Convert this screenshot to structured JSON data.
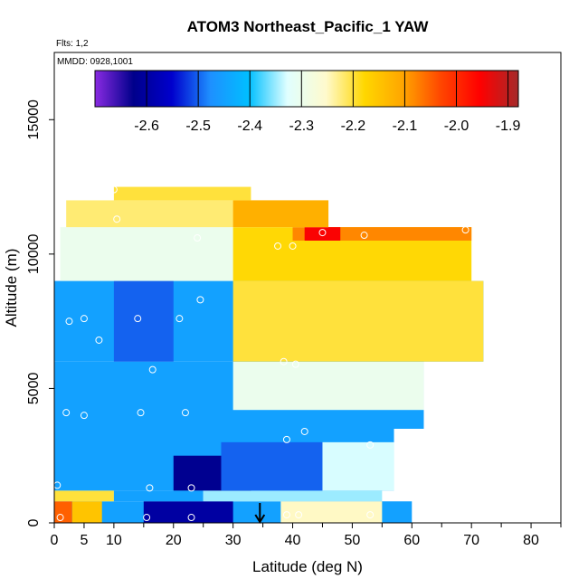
{
  "chart_data": {
    "type": "heatmap",
    "title": "ATOM3 Northeast_Pacific_1 YAW",
    "flights_text": "Flts: 1,2",
    "dates_text": "MMDD: 0928,1001",
    "xlabel": "Latitude (deg N)",
    "ylabel": "Altitude (m)",
    "xlim": [
      0,
      85
    ],
    "ylim": [
      0,
      17500
    ],
    "x_ticks": [
      0,
      5,
      10,
      20,
      30,
      40,
      50,
      60,
      70,
      80
    ],
    "x_minor_ticks": [
      15,
      25,
      35,
      45,
      55,
      65,
      75,
      85
    ],
    "y_ticks": [
      0,
      5000,
      10000,
      15000
    ],
    "colorbar": {
      "range": [
        -2.7,
        -1.88
      ],
      "ticks": [
        -2.6,
        -2.5,
        -2.4,
        -2.3,
        -2.2,
        -2.1,
        -2.0,
        -1.9
      ],
      "tick_labels": [
        "-2.6",
        "-2.5",
        "-2.4",
        "-2.3",
        "-2.2",
        "-2.1",
        "-2.0",
        "-1.9"
      ],
      "colors": [
        "#8a2be2",
        "#00008b",
        "#0000cd",
        "#1e90ff",
        "#00bfff",
        "#e0ffff",
        "#fffacd",
        "#ffd700",
        "#ffa500",
        "#ff4500",
        "#ff0000",
        "#a52a2a"
      ]
    },
    "arrow_latitude": 34.5,
    "regions": [
      {
        "x0": 0,
        "x1": 60,
        "y0": 0,
        "y1": 800,
        "value": -2.45
      },
      {
        "x0": 0,
        "x1": 3,
        "y0": 0,
        "y1": 800,
        "value": -2.05
      },
      {
        "x0": 3,
        "x1": 8,
        "y0": 0,
        "y1": 800,
        "value": -2.15
      },
      {
        "x0": 15,
        "x1": 30,
        "y0": 0,
        "y1": 800,
        "value": -2.6
      },
      {
        "x0": 38,
        "x1": 55,
        "y0": 0,
        "y1": 800,
        "value": -2.25
      },
      {
        "x0": 0,
        "x1": 10,
        "y0": 800,
        "y1": 1200,
        "value": -2.2
      },
      {
        "x0": 10,
        "x1": 25,
        "y0": 800,
        "y1": 1200,
        "value": -2.45
      },
      {
        "x0": 25,
        "x1": 55,
        "y0": 800,
        "y1": 1200,
        "value": -2.35
      },
      {
        "x0": 0,
        "x1": 57,
        "y0": 1200,
        "y1": 3500,
        "value": -2.45
      },
      {
        "x0": 20,
        "x1": 33,
        "y0": 1200,
        "y1": 2500,
        "value": -2.62
      },
      {
        "x0": 28,
        "x1": 45,
        "y0": 1200,
        "y1": 3000,
        "value": -2.5
      },
      {
        "x0": 45,
        "x1": 57,
        "y0": 1200,
        "y1": 3000,
        "value": -2.33
      },
      {
        "x0": 0,
        "x1": 62,
        "y0": 3500,
        "y1": 6000,
        "value": -2.45
      },
      {
        "x0": 30,
        "x1": 62,
        "y0": 4200,
        "y1": 6000,
        "value": -2.3
      },
      {
        "x0": 0,
        "x1": 72,
        "y0": 6000,
        "y1": 9000,
        "value": -2.45
      },
      {
        "x0": 10,
        "x1": 20,
        "y0": 6000,
        "y1": 9000,
        "value": -2.5
      },
      {
        "x0": 30,
        "x1": 72,
        "y0": 6000,
        "y1": 9000,
        "value": -2.2
      },
      {
        "x0": 1,
        "x1": 70,
        "y0": 9000,
        "y1": 11000,
        "value": -2.3
      },
      {
        "x0": 30,
        "x1": 70,
        "y0": 9000,
        "y1": 11000,
        "value": -2.18
      },
      {
        "x0": 40,
        "x1": 70,
        "y0": 10500,
        "y1": 11000,
        "value": -2.08
      },
      {
        "x0": 42,
        "x1": 48,
        "y0": 10500,
        "y1": 11000,
        "value": -1.95
      },
      {
        "x0": 2,
        "x1": 46,
        "y0": 11000,
        "y1": 12000,
        "value": -2.22
      },
      {
        "x0": 30,
        "x1": 46,
        "y0": 11000,
        "y1": 12000,
        "value": -2.12
      },
      {
        "x0": 10,
        "x1": 33,
        "y0": 12000,
        "y1": 12500,
        "value": -2.2
      }
    ],
    "points": [
      {
        "x": 1,
        "y": 200
      },
      {
        "x": 15.5,
        "y": 200
      },
      {
        "x": 23,
        "y": 200
      },
      {
        "x": 39,
        "y": 300
      },
      {
        "x": 41,
        "y": 300
      },
      {
        "x": 53,
        "y": 300
      },
      {
        "x": 16,
        "y": 1300
      },
      {
        "x": 23,
        "y": 1300
      },
      {
        "x": 0.5,
        "y": 1400
      },
      {
        "x": 39,
        "y": 3100
      },
      {
        "x": 42,
        "y": 3400
      },
      {
        "x": 53,
        "y": 2900
      },
      {
        "x": 2,
        "y": 4100
      },
      {
        "x": 5,
        "y": 4000
      },
      {
        "x": 14.5,
        "y": 4100
      },
      {
        "x": 22,
        "y": 4100
      },
      {
        "x": 16.5,
        "y": 5700
      },
      {
        "x": 38.5,
        "y": 6000
      },
      {
        "x": 40.5,
        "y": 5900
      },
      {
        "x": 7.5,
        "y": 6800
      },
      {
        "x": 2.5,
        "y": 7500
      },
      {
        "x": 5,
        "y": 7600
      },
      {
        "x": 14,
        "y": 7600
      },
      {
        "x": 21,
        "y": 7600
      },
      {
        "x": 24.5,
        "y": 8300
      },
      {
        "x": 24,
        "y": 10600
      },
      {
        "x": 37.5,
        "y": 10300
      },
      {
        "x": 40,
        "y": 10300
      },
      {
        "x": 45,
        "y": 10800
      },
      {
        "x": 52,
        "y": 10700
      },
      {
        "x": 69,
        "y": 10900
      },
      {
        "x": 10.5,
        "y": 11300
      },
      {
        "x": 10,
        "y": 12400
      }
    ]
  }
}
